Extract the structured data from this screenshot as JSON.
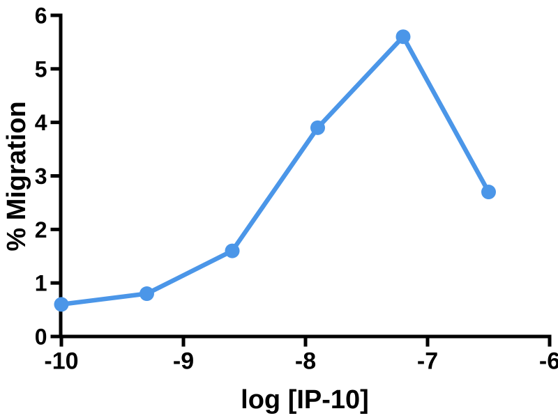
{
  "chart_data": {
    "type": "line",
    "title": "",
    "xlabel": "log [IP-10]",
    "ylabel": "% Migration",
    "x": [
      -10,
      -9.3,
      -8.6,
      -7.9,
      -7.2,
      -6.5
    ],
    "y": [
      0.6,
      0.8,
      1.6,
      3.9,
      5.6,
      2.7
    ],
    "xlim": [
      -10,
      -6
    ],
    "ylim": [
      0,
      6
    ],
    "x_ticks": [
      "-10",
      "-9",
      "-8",
      "-7",
      "-6"
    ],
    "x_tick_values": [
      -10,
      -9,
      -8,
      -7,
      -6
    ],
    "y_ticks": [
      "0",
      "1",
      "2",
      "3",
      "4",
      "5",
      "6"
    ],
    "y_tick_values": [
      0,
      1,
      2,
      3,
      4,
      5,
      6
    ],
    "grid": false,
    "legend": false,
    "line_color": "#4b96e8",
    "marker_color": "#4b96e8",
    "axis_color": "#000000",
    "marker": "circle"
  }
}
